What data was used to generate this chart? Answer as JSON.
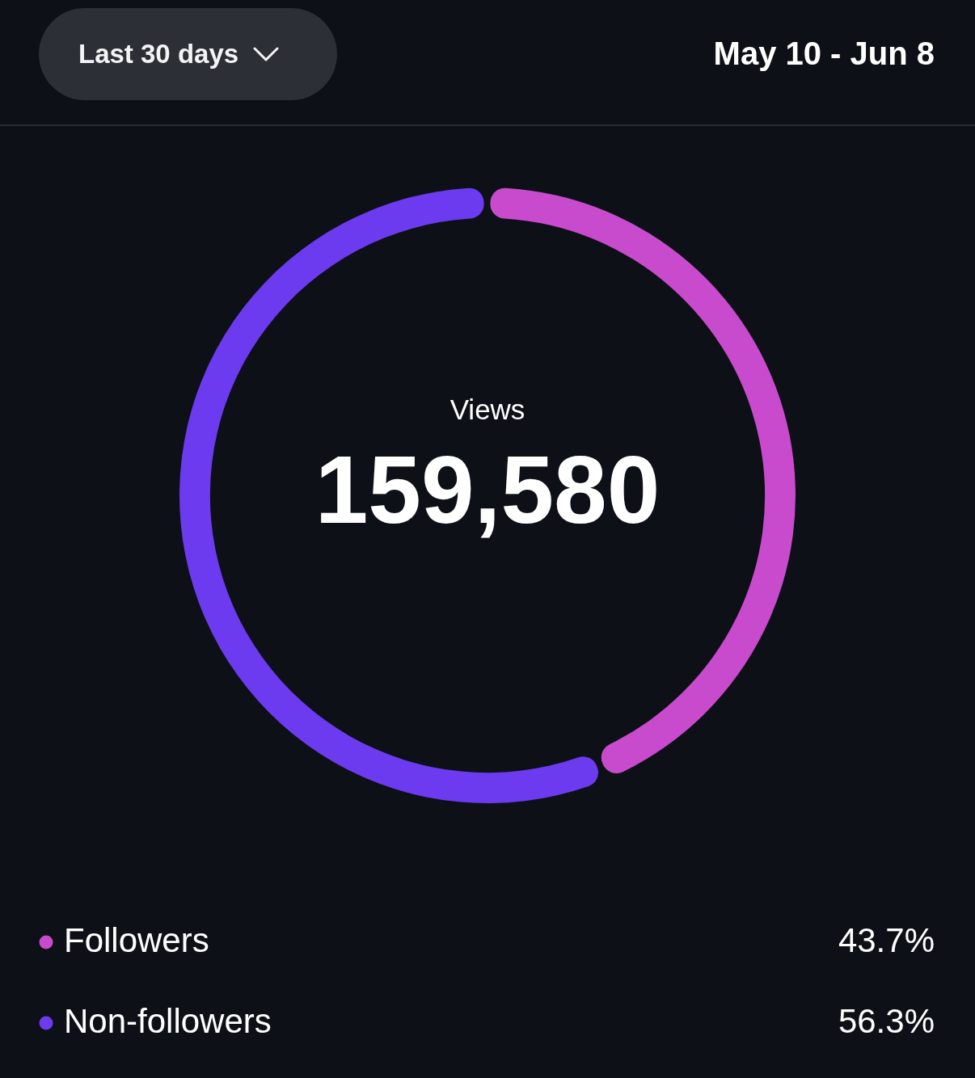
{
  "chart_data": {
    "type": "donut",
    "title": "Views",
    "subtitle": "May 10 - Jun 8",
    "annotations": [
      "Last 30 days",
      "159,580"
    ],
    "categories": [
      "Followers",
      "Non-followers"
    ],
    "values": [
      43.7,
      56.3
    ],
    "colors": [
      "#c84bcd",
      "#6c3bef"
    ],
    "value_labels": [
      "43.7%",
      "56.3%"
    ],
    "legend": "bottom"
  }
}
